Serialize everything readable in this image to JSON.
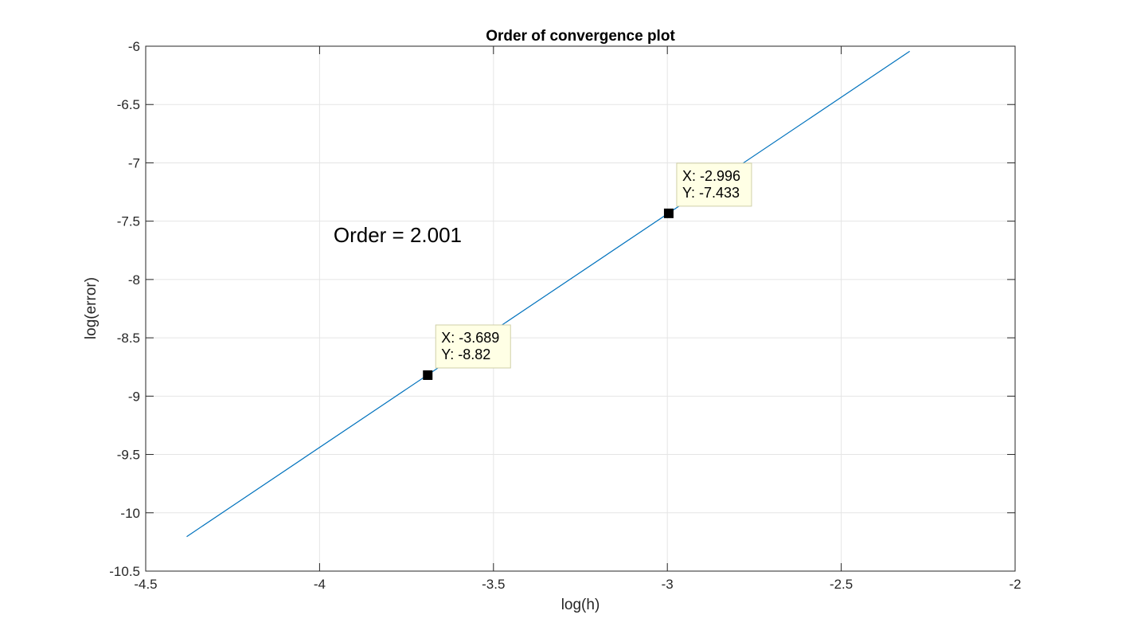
{
  "chart_data": {
    "type": "line",
    "title": "Order of convergence plot",
    "xlabel": "log(h)",
    "ylabel": "log(error)",
    "xlim": [
      -4.5,
      -2
    ],
    "ylim": [
      -10.5,
      -6
    ],
    "xticks": [
      -4.5,
      -4,
      -3.5,
      -3,
      -2.5,
      -2
    ],
    "xtick_labels": [
      "-4.5",
      "-4",
      "-3.5",
      "-3",
      "-2.5",
      "-2"
    ],
    "yticks": [
      -10.5,
      -10,
      -9.5,
      -9,
      -8.5,
      -8,
      -7.5,
      -7,
      -6.5,
      -6
    ],
    "ytick_labels": [
      "-10.5",
      "-10",
      "-9.5",
      "-9",
      "-8.5",
      "-8",
      "-7.5",
      "-7",
      "-6.5",
      "-6"
    ],
    "grid": true,
    "series": [
      {
        "color": "#0072bd",
        "x": [
          -4.382,
          -2.303
        ],
        "y": [
          -10.204,
          -6.044
        ]
      }
    ],
    "datatips": [
      {
        "x": -3.689,
        "y": -8.82,
        "line1": "X: -3.689",
        "line2": "Y: -8.82"
      },
      {
        "x": -2.996,
        "y": -7.433,
        "line1": "X: -2.996",
        "line2": "Y: -7.433"
      }
    ],
    "annotations": [
      {
        "text": "Order = 2.001",
        "x": -3.96,
        "y": -7.68
      }
    ],
    "colors": {
      "grid": "#e5e5e5",
      "axes": "#262626",
      "tip_bg": "#ffffe5",
      "tip_border": "#d0d0a8",
      "marker": "#000000"
    }
  }
}
